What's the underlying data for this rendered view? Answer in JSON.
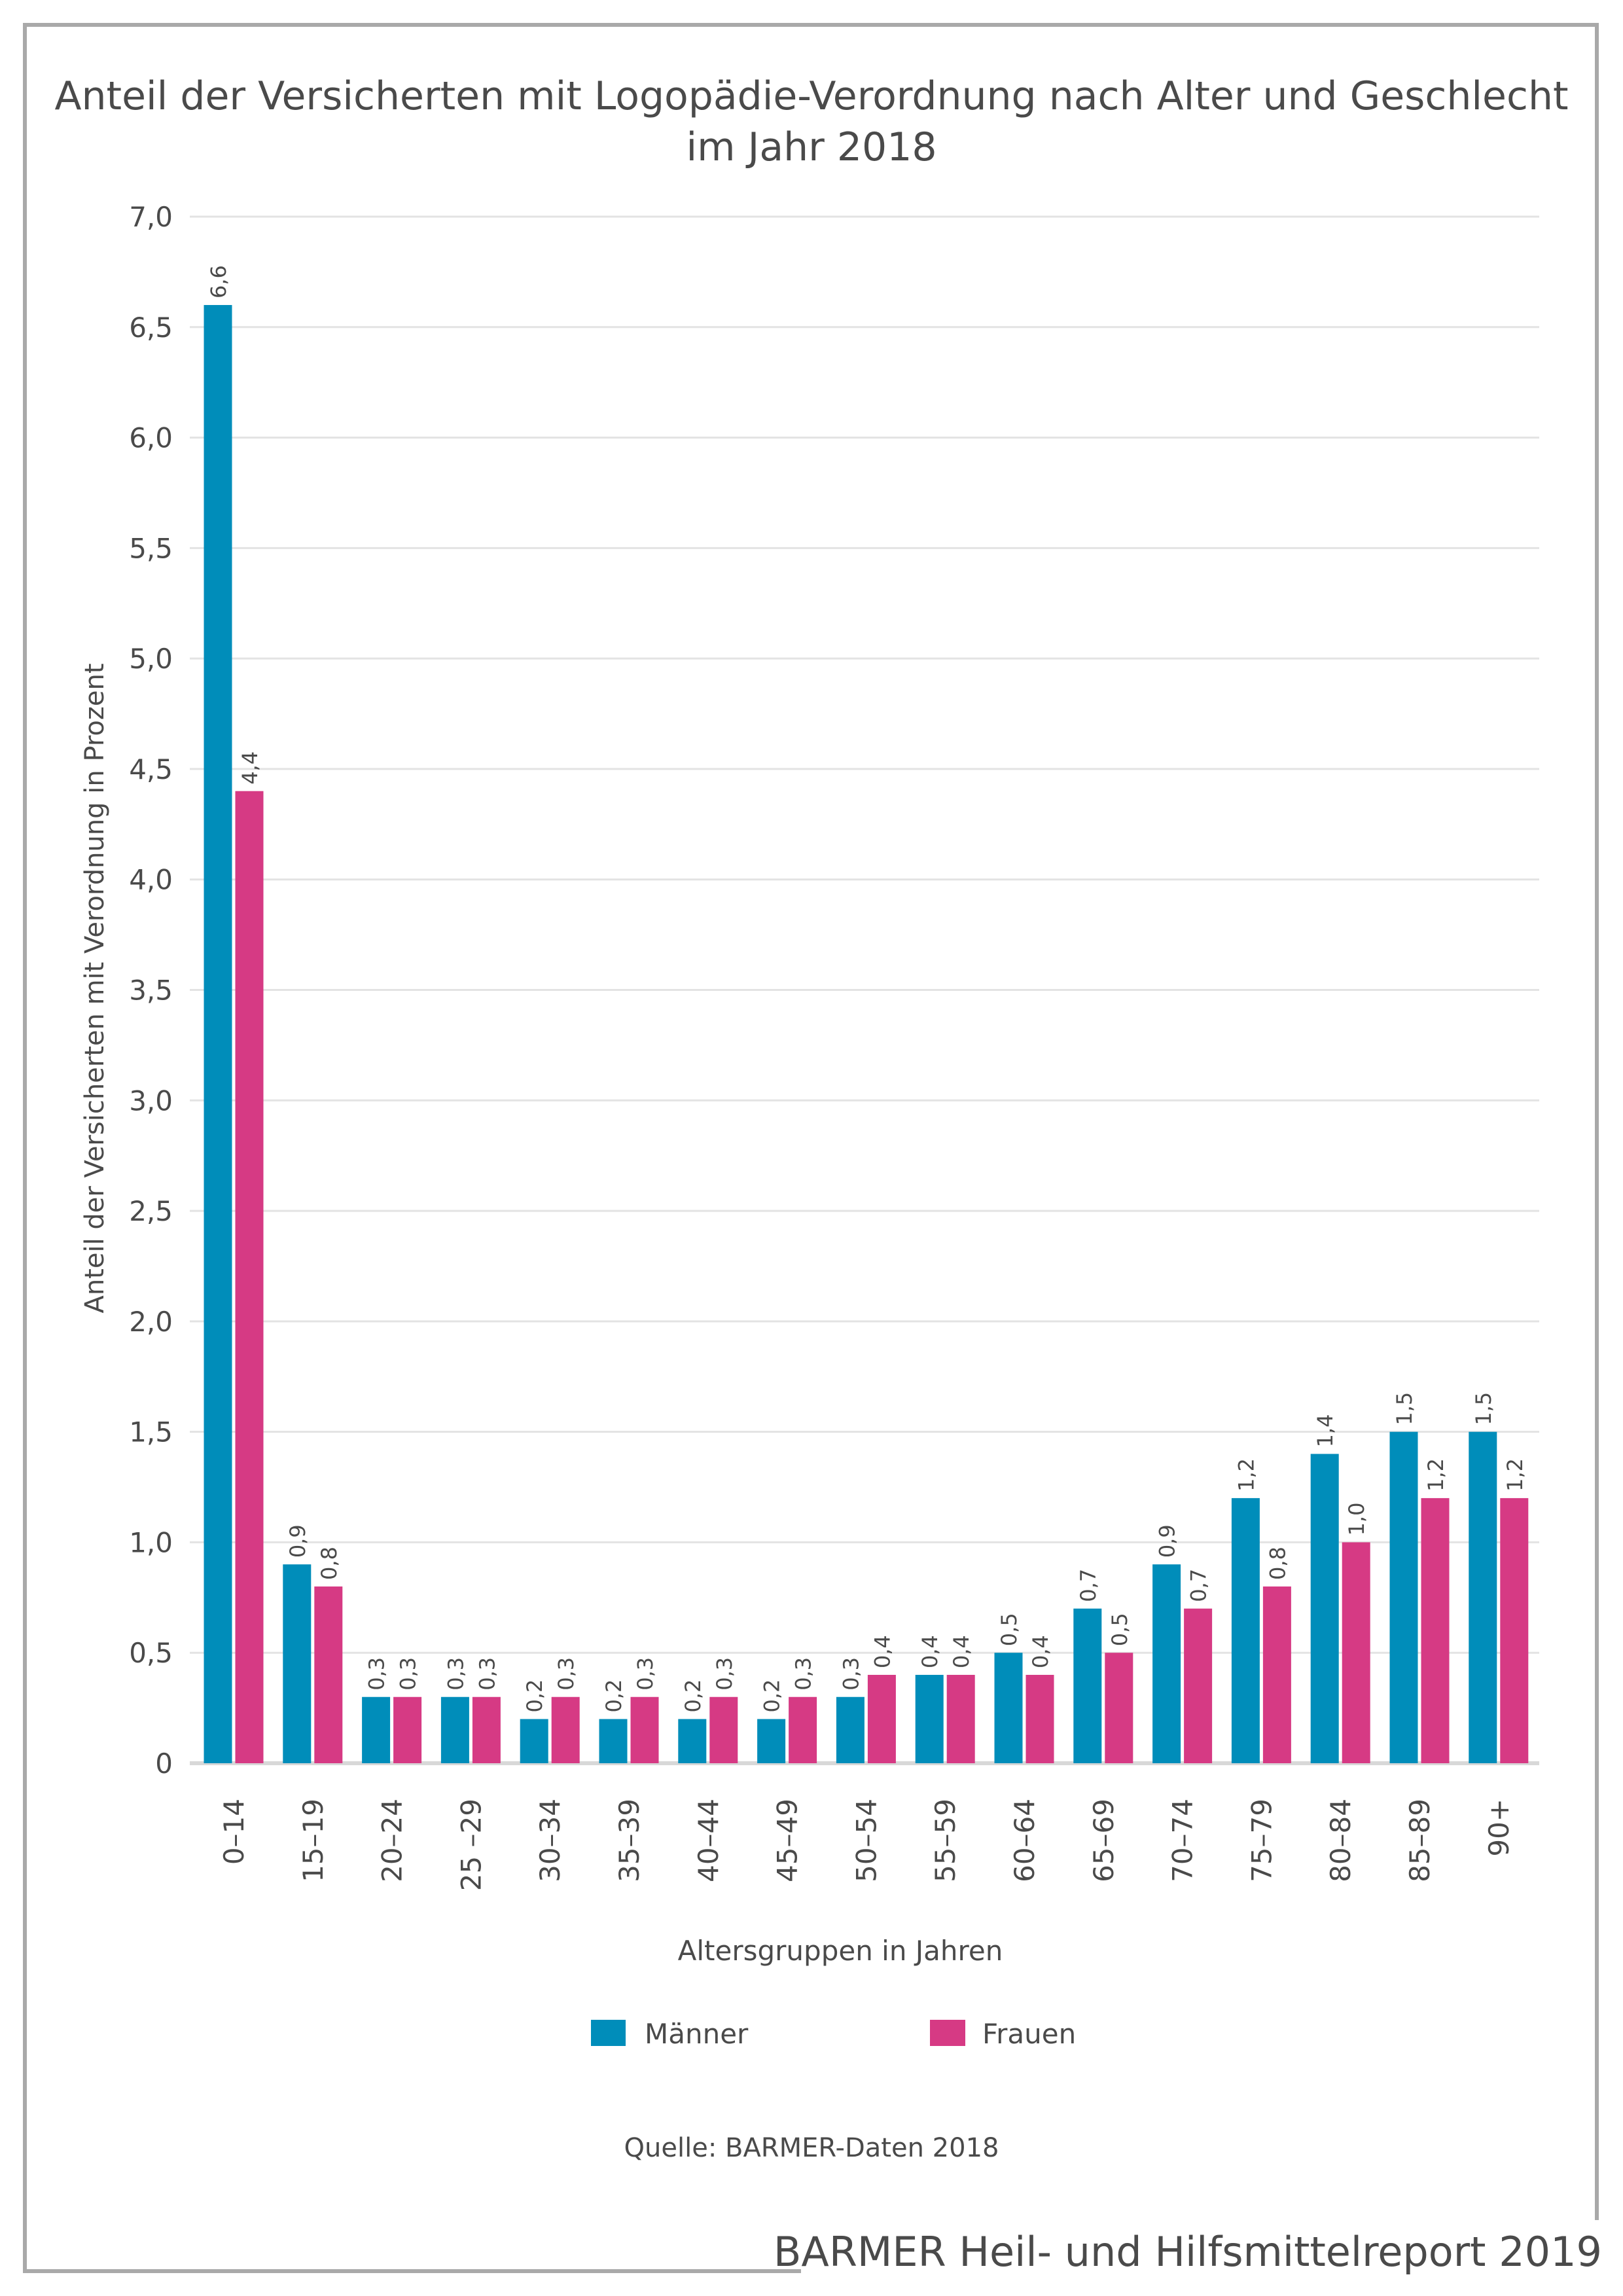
{
  "chart_data": {
    "type": "bar",
    "title_lines": [
      "Anteil der Versicherten mit Logopädie-Verordnung nach Alter und Geschlecht",
      "im Jahr 2018"
    ],
    "xlabel": "Altersgruppen in Jahren",
    "ylabel": "Anteil der Versicherten mit Verordnung in Prozent",
    "ylim": [
      0,
      7
    ],
    "yticks": [
      "0",
      "0,5",
      "1,0",
      "1,5",
      "2,0",
      "2,5",
      "3,0",
      "3,5",
      "4,0",
      "4,5",
      "5,0",
      "5,5",
      "6,0",
      "6,5",
      "7,0"
    ],
    "grid": true,
    "legend_position": "bottom",
    "categories": [
      "0–14",
      "15–19",
      "20–24",
      "25 –29",
      "30–34",
      "35–39",
      "40–44",
      "45–49",
      "50–54",
      "55–59",
      "60–64",
      "65–69",
      "70–74",
      "75–79",
      "80–84",
      "85–89",
      "90+"
    ],
    "series": [
      {
        "name": "Männer",
        "color": "#008dba",
        "values": [
          6.6,
          0.9,
          0.3,
          0.3,
          0.2,
          0.2,
          0.2,
          0.2,
          0.3,
          0.4,
          0.5,
          0.7,
          0.9,
          1.2,
          1.4,
          1.5,
          1.5
        ]
      },
      {
        "name": "Frauen",
        "color": "#d63a84",
        "values": [
          4.4,
          0.8,
          0.3,
          0.3,
          0.3,
          0.3,
          0.3,
          0.3,
          0.4,
          0.4,
          0.4,
          0.5,
          0.7,
          0.8,
          1.0,
          1.2,
          1.2
        ]
      }
    ],
    "source": "Quelle: BARMER-Daten 2018"
  },
  "footer": "BARMER Heil- und Hilfsmittelreport 2019"
}
